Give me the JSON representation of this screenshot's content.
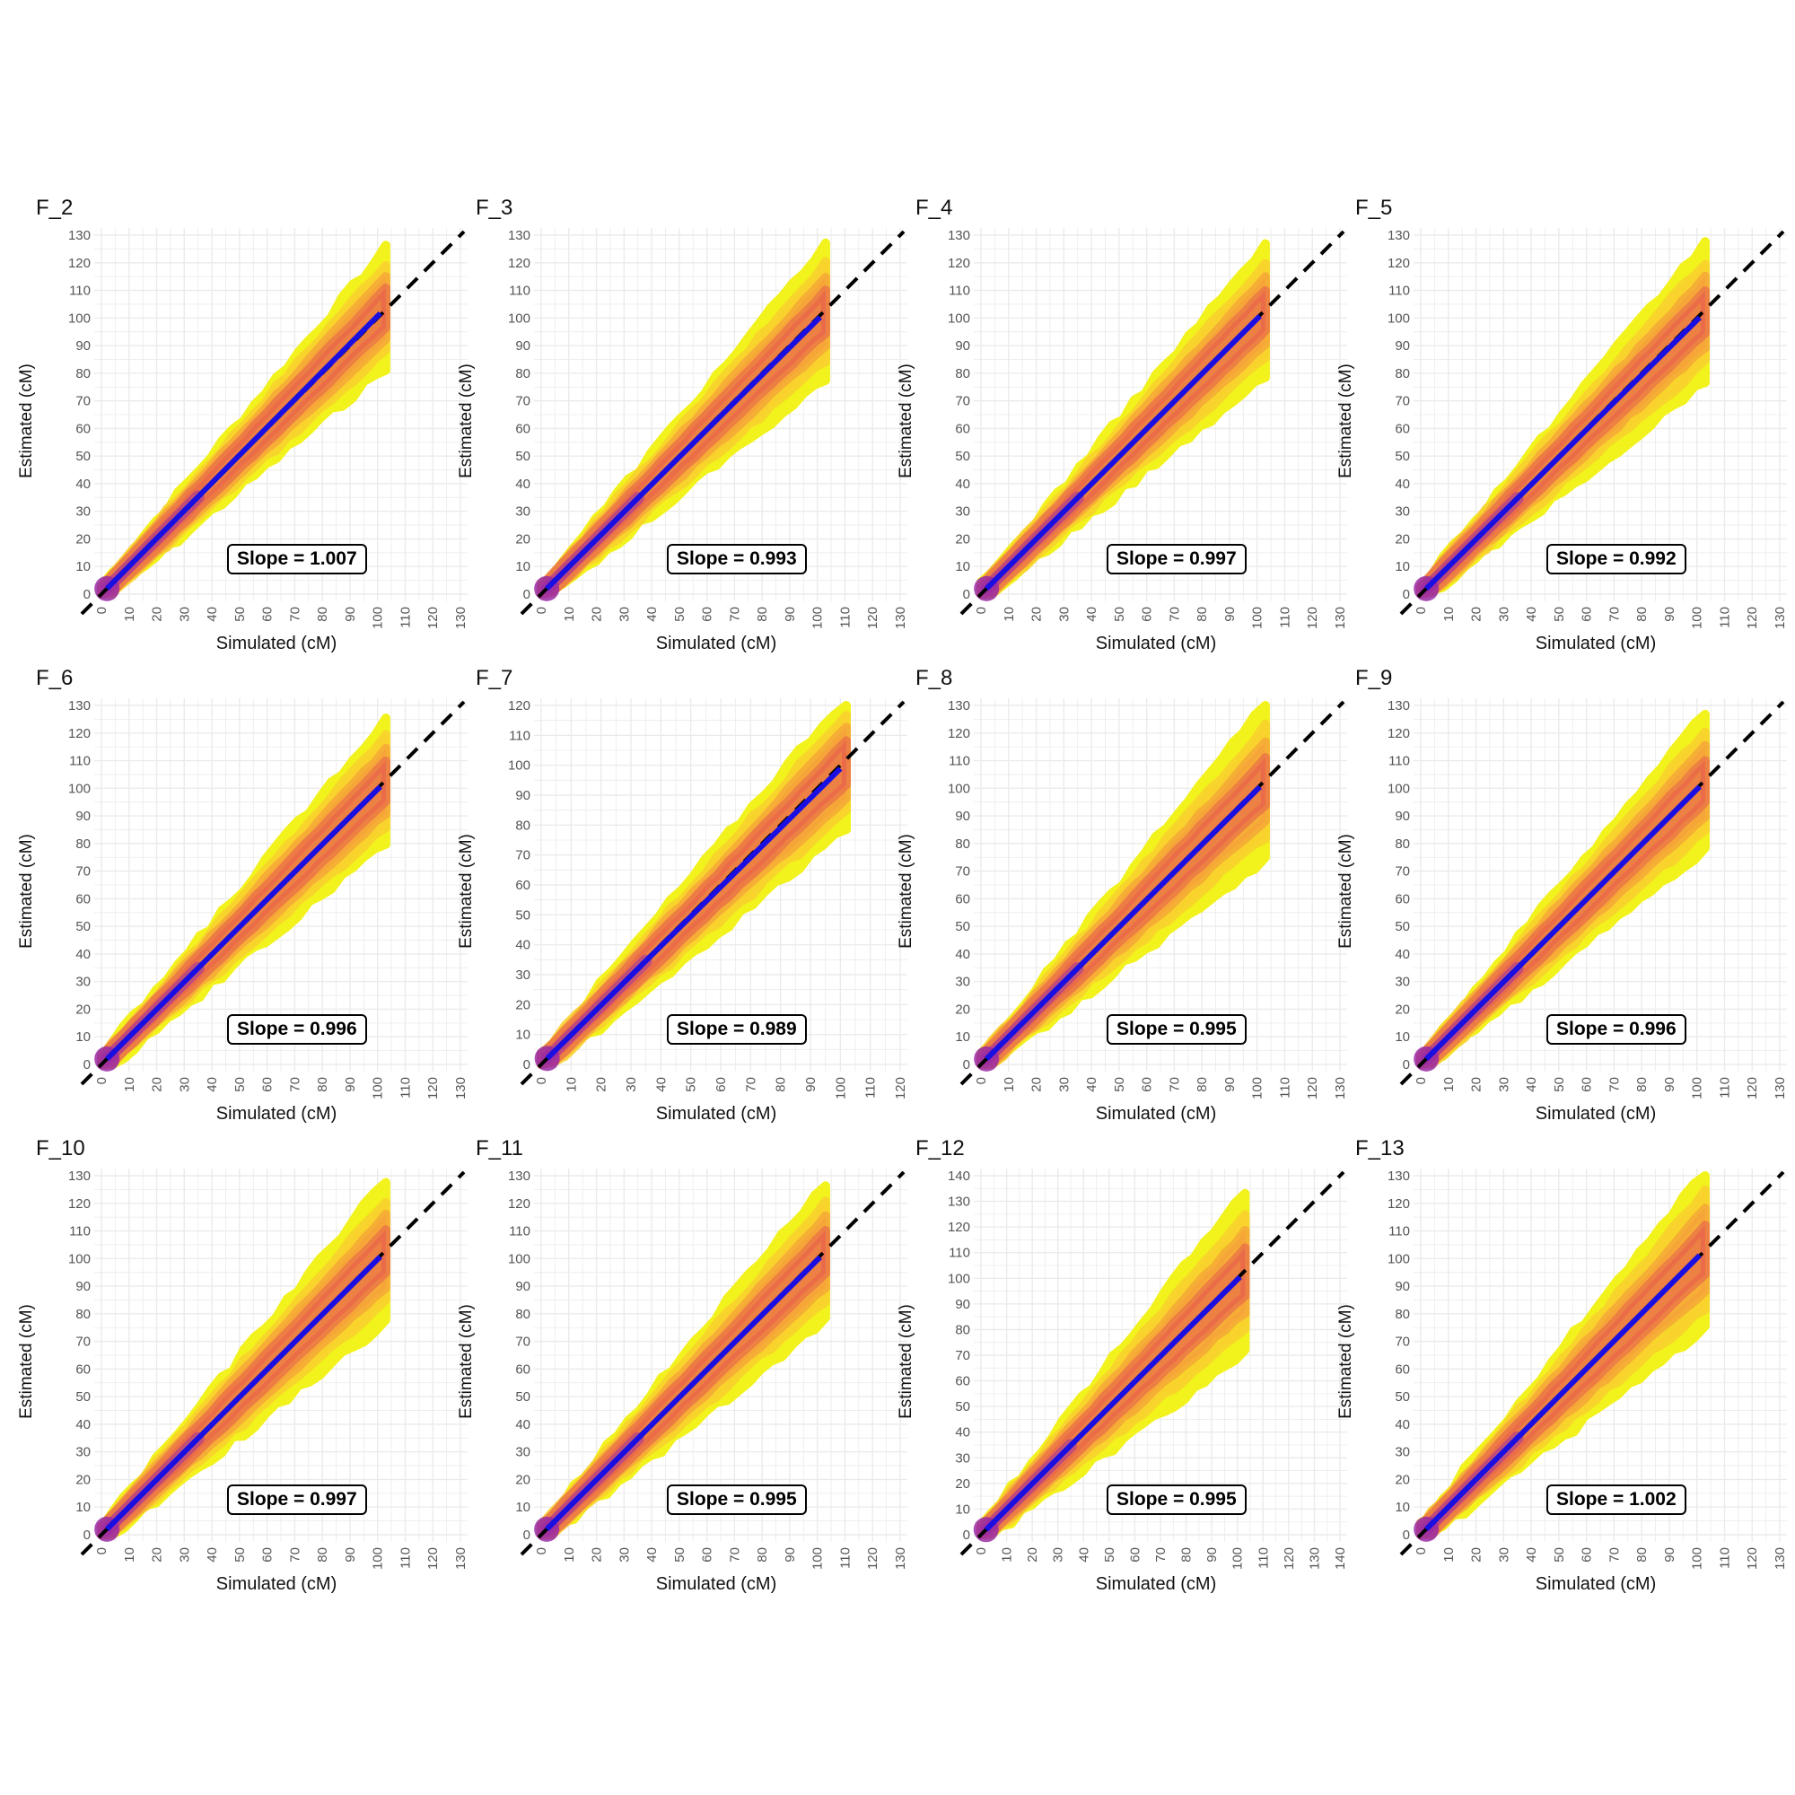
{
  "chart_data": [
    {
      "type": "scatter",
      "title": "F_2",
      "xlabel": "Simulated (cM)",
      "ylabel": "Estimated (cM)",
      "xlim": [
        0,
        130
      ],
      "ylim": [
        0,
        130
      ],
      "x_ticks": [
        0,
        10,
        20,
        30,
        40,
        50,
        60,
        70,
        80,
        90,
        100,
        110,
        120,
        130
      ],
      "y_ticks": [
        0,
        10,
        20,
        30,
        40,
        50,
        60,
        70,
        80,
        90,
        100,
        110,
        120,
        130
      ],
      "x_max_data": 103,
      "y_max_data": 122,
      "slope": 1.007,
      "annotation": "Slope = 1.007",
      "reference_line": "y = x (dashed)",
      "fit_line_color": "#1a0fe0"
    },
    {
      "type": "scatter",
      "title": "F_3",
      "xlabel": "Simulated (cM)",
      "ylabel": "Estimated (cM)",
      "xlim": [
        0,
        130
      ],
      "ylim": [
        0,
        130
      ],
      "x_ticks": [
        0,
        10,
        20,
        30,
        40,
        50,
        60,
        70,
        80,
        90,
        100,
        110,
        120,
        130
      ],
      "y_ticks": [
        0,
        10,
        20,
        30,
        40,
        50,
        60,
        70,
        80,
        90,
        100,
        110,
        120,
        130
      ],
      "x_max_data": 103,
      "y_max_data": 123,
      "slope": 0.993,
      "annotation": "Slope = 0.993",
      "reference_line": "y = x (dashed)",
      "fit_line_color": "#1a0fe0"
    },
    {
      "type": "scatter",
      "title": "F_4",
      "xlabel": "Simulated (cM)",
      "ylabel": "Estimated (cM)",
      "xlim": [
        0,
        130
      ],
      "ylim": [
        0,
        130
      ],
      "x_ticks": [
        0,
        10,
        20,
        30,
        40,
        50,
        60,
        70,
        80,
        90,
        100,
        110,
        120,
        130
      ],
      "y_ticks": [
        0,
        10,
        20,
        30,
        40,
        50,
        60,
        70,
        80,
        90,
        100,
        110,
        120,
        130
      ],
      "x_max_data": 103,
      "y_max_data": 123,
      "slope": 0.997,
      "annotation": "Slope = 0.997",
      "reference_line": "y = x (dashed)",
      "fit_line_color": "#1a0fe0"
    },
    {
      "type": "scatter",
      "title": "F_5",
      "xlabel": "Simulated (cM)",
      "ylabel": "Estimated (cM)",
      "xlim": [
        0,
        130
      ],
      "ylim": [
        0,
        130
      ],
      "x_ticks": [
        0,
        10,
        20,
        30,
        40,
        50,
        60,
        70,
        80,
        90,
        100,
        110,
        120,
        130
      ],
      "y_ticks": [
        0,
        10,
        20,
        30,
        40,
        50,
        60,
        70,
        80,
        90,
        100,
        110,
        120,
        130
      ],
      "x_max_data": 103,
      "y_max_data": 124,
      "slope": 0.992,
      "annotation": "Slope = 0.992",
      "reference_line": "y = x (dashed)",
      "fit_line_color": "#1a0fe0"
    },
    {
      "type": "scatter",
      "title": "F_6",
      "xlabel": "Simulated (cM)",
      "ylabel": "Estimated (cM)",
      "xlim": [
        0,
        130
      ],
      "ylim": [
        0,
        130
      ],
      "x_ticks": [
        0,
        10,
        20,
        30,
        40,
        50,
        60,
        70,
        80,
        90,
        100,
        110,
        120,
        130
      ],
      "y_ticks": [
        0,
        10,
        20,
        30,
        40,
        50,
        60,
        70,
        80,
        90,
        100,
        110,
        120,
        130
      ],
      "x_max_data": 103,
      "y_max_data": 122,
      "slope": 0.996,
      "annotation": "Slope = 0.996",
      "reference_line": "y = x (dashed)",
      "fit_line_color": "#1a0fe0"
    },
    {
      "type": "scatter",
      "title": "F_7",
      "xlabel": "Simulated (cM)",
      "ylabel": "Estimated (cM)",
      "xlim": [
        0,
        120
      ],
      "ylim": [
        0,
        120
      ],
      "x_ticks": [
        0,
        10,
        20,
        30,
        40,
        50,
        60,
        70,
        80,
        90,
        100,
        110,
        120
      ],
      "y_ticks": [
        0,
        10,
        20,
        30,
        40,
        50,
        60,
        70,
        80,
        90,
        100,
        110,
        120
      ],
      "x_max_data": 102,
      "y_max_data": 120,
      "slope": 0.989,
      "annotation": "Slope = 0.989",
      "reference_line": "y = x (dashed)",
      "fit_line_color": "#1a0fe0"
    },
    {
      "type": "scatter",
      "title": "F_8",
      "xlabel": "Simulated (cM)",
      "ylabel": "Estimated (cM)",
      "xlim": [
        0,
        130
      ],
      "ylim": [
        0,
        130
      ],
      "x_ticks": [
        0,
        10,
        20,
        30,
        40,
        50,
        60,
        70,
        80,
        90,
        100,
        110,
        120,
        130
      ],
      "y_ticks": [
        0,
        10,
        20,
        30,
        40,
        50,
        60,
        70,
        80,
        90,
        100,
        110,
        120,
        130
      ],
      "x_max_data": 103,
      "y_max_data": 127,
      "slope": 0.995,
      "annotation": "Slope = 0.995",
      "reference_line": "y = x (dashed)",
      "fit_line_color": "#1a0fe0"
    },
    {
      "type": "scatter",
      "title": "F_9",
      "xlabel": "Simulated (cM)",
      "ylabel": "Estimated (cM)",
      "xlim": [
        0,
        130
      ],
      "ylim": [
        0,
        130
      ],
      "x_ticks": [
        0,
        10,
        20,
        30,
        40,
        50,
        60,
        70,
        80,
        90,
        100,
        110,
        120,
        130
      ],
      "y_ticks": [
        0,
        10,
        20,
        30,
        40,
        50,
        60,
        70,
        80,
        90,
        100,
        110,
        120,
        130
      ],
      "x_max_data": 103,
      "y_max_data": 124,
      "slope": 0.996,
      "annotation": "Slope = 0.996",
      "reference_line": "y = x (dashed)",
      "fit_line_color": "#1a0fe0"
    },
    {
      "type": "scatter",
      "title": "F_10",
      "xlabel": "Simulated (cM)",
      "ylabel": "Estimated (cM)",
      "xlim": [
        0,
        130
      ],
      "ylim": [
        0,
        130
      ],
      "x_ticks": [
        0,
        10,
        20,
        30,
        40,
        50,
        60,
        70,
        80,
        90,
        100,
        110,
        120,
        130
      ],
      "y_ticks": [
        0,
        10,
        20,
        30,
        40,
        50,
        60,
        70,
        80,
        90,
        100,
        110,
        120,
        130
      ],
      "x_max_data": 103,
      "y_max_data": 125,
      "slope": 0.997,
      "annotation": "Slope = 0.997",
      "reference_line": "y = x (dashed)",
      "fit_line_color": "#1a0fe0"
    },
    {
      "type": "scatter",
      "title": "F_11",
      "xlabel": "Simulated (cM)",
      "ylabel": "Estimated (cM)",
      "xlim": [
        0,
        130
      ],
      "ylim": [
        0,
        130
      ],
      "x_ticks": [
        0,
        10,
        20,
        30,
        40,
        50,
        60,
        70,
        80,
        90,
        100,
        110,
        120,
        130
      ],
      "y_ticks": [
        0,
        10,
        20,
        30,
        40,
        50,
        60,
        70,
        80,
        90,
        100,
        110,
        120,
        130
      ],
      "x_max_data": 103,
      "y_max_data": 124,
      "slope": 0.995,
      "annotation": "Slope = 0.995",
      "reference_line": "y = x (dashed)",
      "fit_line_color": "#1a0fe0"
    },
    {
      "type": "scatter",
      "title": "F_12",
      "xlabel": "Simulated (cM)",
      "ylabel": "Estimated (cM)",
      "xlim": [
        0,
        140
      ],
      "ylim": [
        0,
        140
      ],
      "x_ticks": [
        0,
        10,
        20,
        30,
        40,
        50,
        60,
        70,
        80,
        90,
        100,
        110,
        120,
        130,
        140
      ],
      "y_ticks": [
        0,
        10,
        20,
        30,
        40,
        50,
        60,
        70,
        80,
        90,
        100,
        110,
        120,
        130,
        140
      ],
      "x_max_data": 103,
      "y_max_data": 131,
      "slope": 0.995,
      "annotation": "Slope = 0.995",
      "reference_line": "y = x (dashed)",
      "fit_line_color": "#1a0fe0"
    },
    {
      "type": "scatter",
      "title": "F_13",
      "xlabel": "Simulated (cM)",
      "ylabel": "Estimated (cM)",
      "xlim": [
        0,
        130
      ],
      "ylim": [
        0,
        130
      ],
      "x_ticks": [
        0,
        10,
        20,
        30,
        40,
        50,
        60,
        70,
        80,
        90,
        100,
        110,
        120,
        130
      ],
      "y_ticks": [
        0,
        10,
        20,
        30,
        40,
        50,
        60,
        70,
        80,
        90,
        100,
        110,
        120,
        130
      ],
      "x_max_data": 103,
      "y_max_data": 129,
      "slope": 1.002,
      "annotation": "Slope = 1.002",
      "reference_line": "y = x (dashed)",
      "fit_line_color": "#1a0fe0"
    }
  ],
  "colors": {
    "density_low": "#f2f21c",
    "density_mid": "#f5a23a",
    "density_high": "#e8604c",
    "density_core": "#9a2aa6",
    "fit_line": "#1a0fe0",
    "reference_line": "#000000",
    "grid": "#ebebeb"
  }
}
